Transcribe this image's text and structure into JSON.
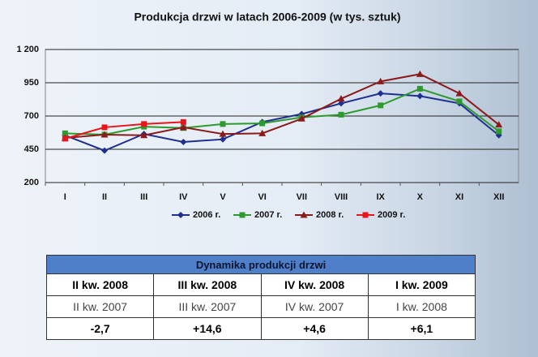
{
  "chart_data": {
    "type": "line",
    "title": "Produkcja drzwi w latach 2006-2009 (w tys. sztuk)",
    "categories": [
      "I",
      "II",
      "III",
      "IV",
      "V",
      "VI",
      "VII",
      "VIII",
      "IX",
      "X",
      "XI",
      "XII"
    ],
    "series": [
      {
        "name": "2006 r.",
        "color": "#1f2f8f",
        "marker": "diamond",
        "values": [
          555,
          440,
          565,
          505,
          525,
          655,
          715,
          795,
          870,
          850,
          795,
          555
        ]
      },
      {
        "name": "2007 r.",
        "color": "#2e9a2e",
        "marker": "square",
        "values": [
          570,
          560,
          620,
          610,
          640,
          645,
          690,
          710,
          780,
          905,
          810,
          585
        ]
      },
      {
        "name": "2008 r.",
        "color": "#8b1a1a",
        "marker": "triangle",
        "values": [
          535,
          560,
          555,
          615,
          565,
          570,
          680,
          830,
          960,
          1015,
          870,
          635
        ]
      },
      {
        "name": "2009 r.",
        "color": "#e8161b",
        "marker": "square",
        "values": [
          530,
          615,
          640,
          655,
          null,
          null,
          null,
          null,
          null,
          null,
          null,
          null
        ]
      }
    ],
    "ylim": [
      200,
      1200
    ],
    "yticks": [
      200,
      450,
      700,
      950,
      {
        "value": 1200,
        "label": "1 200"
      }
    ],
    "grid": true,
    "legend": "bottom"
  },
  "table": {
    "title": "Dynamika produkcji drzwi",
    "rows": [
      [
        "II kw. 2008",
        "III kw. 2008",
        "IV kw. 2008",
        "I kw. 2009"
      ],
      [
        "II kw. 2007",
        "III kw. 2007",
        "IV kw. 2007",
        "I kw. 2008"
      ],
      [
        "-2,7",
        "+14,6",
        "+4,6",
        "+6,1"
      ]
    ]
  }
}
